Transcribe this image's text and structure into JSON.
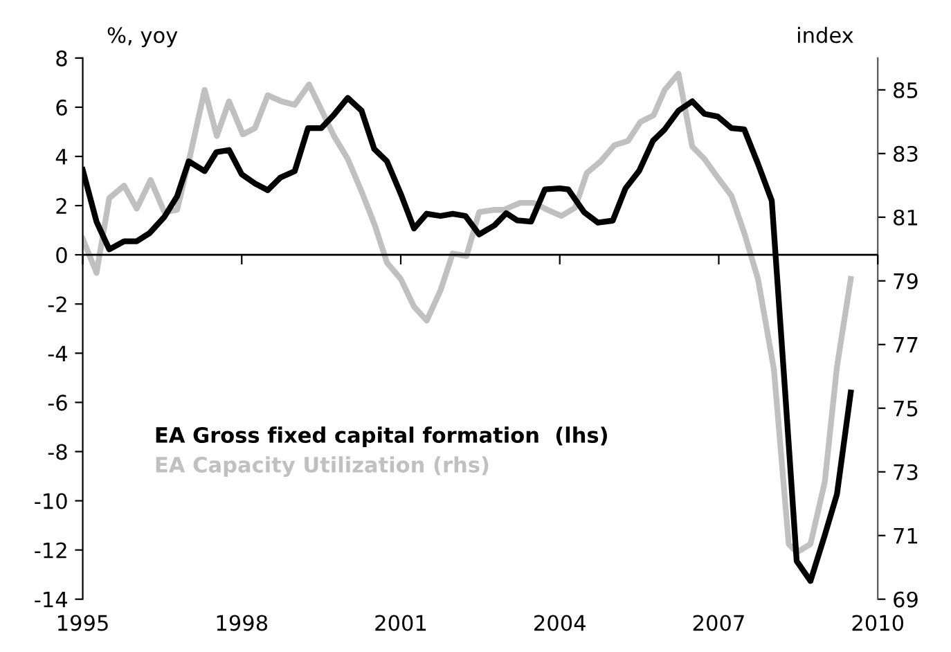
{
  "chart_data": {
    "type": "line",
    "ylabel": "%, yoy",
    "y2label": "index",
    "xlim": [
      1995,
      2010
    ],
    "xticks": [
      1995,
      1998,
      2001,
      2004,
      2007,
      2010
    ],
    "ylim": [
      -14,
      8
    ],
    "yticks": [
      -14,
      -12,
      -10,
      -8,
      -6,
      -4,
      -2,
      0,
      2,
      4,
      6,
      8
    ],
    "y2lim": [
      69,
      86
    ],
    "y2ticks": [
      69,
      71,
      73,
      75,
      77,
      79,
      81,
      83,
      85
    ],
    "legend": false,
    "grid": false,
    "ref_lines": [
      {
        "axis": "y",
        "value": 0,
        "color": "#000000"
      }
    ],
    "line_style": "solid",
    "marker": "none",
    "series": [
      {
        "name": "EA Gross fixed capital formation  (lhs)",
        "color": "#000000",
        "x": [
          1995.0,
          1995.26,
          1995.5,
          1995.78,
          1996.02,
          1996.26,
          1996.54,
          1996.78,
          1997.0,
          1997.3,
          1997.52,
          1997.76,
          1998.0,
          1998.25,
          1998.49,
          1998.73,
          1999.0,
          1999.25,
          1999.5,
          1999.73,
          2000.0,
          2000.26,
          2000.5,
          2000.74,
          2001.0,
          2001.25,
          2001.49,
          2001.75,
          2001.98,
          2002.22,
          2002.48,
          2002.77,
          2002.99,
          2003.2,
          2003.46,
          2003.72,
          2004.0,
          2004.16,
          2004.46,
          2004.72,
          2005.0,
          2005.24,
          2005.5,
          2005.76,
          2005.98,
          2006.24,
          2006.5,
          2006.73,
          2006.98,
          2007.24,
          2007.48,
          2007.74,
          2008.0,
          2008.25,
          2008.47,
          2008.73,
          2009.0,
          2009.23,
          2009.49
        ],
        "values": [
          3.45,
          1.35,
          0.22,
          0.55,
          0.55,
          0.88,
          1.54,
          2.38,
          3.8,
          3.4,
          4.17,
          4.26,
          3.27,
          2.9,
          2.63,
          3.14,
          3.4,
          5.15,
          5.15,
          5.67,
          6.38,
          5.86,
          4.3,
          3.8,
          2.48,
          1.07,
          1.67,
          1.58,
          1.67,
          1.58,
          0.83,
          1.2,
          1.69,
          1.4,
          1.35,
          2.66,
          2.7,
          2.66,
          1.73,
          1.31,
          1.39,
          2.7,
          3.42,
          4.64,
          5.1,
          5.86,
          6.24,
          5.73,
          5.62,
          5.15,
          5.1,
          3.7,
          2.2,
          -5.5,
          -12.45,
          -13.26,
          -11.4,
          -9.73,
          -5.6
        ]
      },
      {
        "name": "EA Capacity Utilization (rhs)",
        "color": "#c0c0c0",
        "axis": "y2",
        "x": [
          1995.0,
          1995.26,
          1995.5,
          1995.78,
          1996.02,
          1996.28,
          1996.54,
          1996.78,
          1997.04,
          1997.3,
          1997.53,
          1997.76,
          1998.02,
          1998.25,
          1998.49,
          1998.75,
          1999.0,
          1999.27,
          1999.51,
          1999.74,
          2000.0,
          2000.26,
          2000.51,
          2000.74,
          2001.0,
          2001.25,
          2001.49,
          2001.75,
          2001.98,
          2002.24,
          2002.48,
          2002.77,
          2002.94,
          2003.25,
          2003.51,
          2003.77,
          2004.03,
          2004.29,
          2004.51,
          2004.77,
          2005.03,
          2005.29,
          2005.52,
          2005.77,
          2005.98,
          2006.24,
          2006.5,
          2006.73,
          2006.98,
          2007.24,
          2007.48,
          2007.74,
          2008.04,
          2008.32,
          2008.47,
          2008.73,
          2009.0,
          2009.23,
          2009.49
        ],
        "values": [
          80.32,
          79.25,
          81.6,
          81.99,
          81.27,
          82.17,
          81.16,
          81.23,
          83.04,
          85.0,
          83.55,
          84.64,
          83.6,
          83.8,
          84.83,
          84.64,
          84.53,
          85.17,
          84.35,
          83.55,
          82.83,
          81.81,
          80.75,
          79.57,
          79.06,
          78.19,
          77.75,
          78.7,
          79.86,
          79.78,
          81.16,
          81.23,
          81.23,
          81.45,
          81.45,
          81.23,
          81.04,
          81.3,
          82.39,
          82.75,
          83.26,
          83.4,
          83.99,
          84.2,
          85.0,
          85.51,
          83.22,
          82.83,
          82.25,
          81.67,
          80.51,
          79.06,
          76.23,
          70.73,
          70.47,
          70.73,
          72.68,
          76.3,
          79.06
        ]
      }
    ]
  }
}
